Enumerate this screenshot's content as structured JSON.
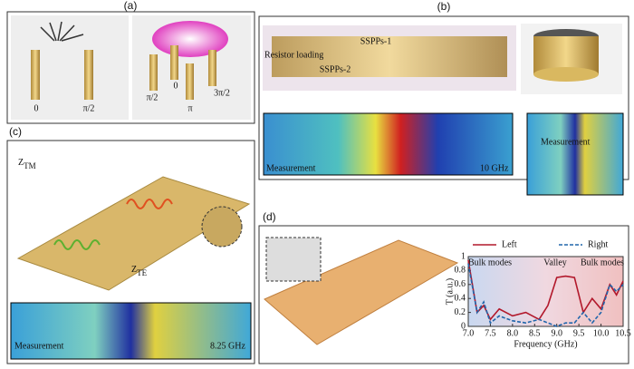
{
  "panel_a": {
    "label": "(a)",
    "phases_left": [
      "0",
      "π/2"
    ],
    "phases_right": [
      "π/2",
      "0",
      "π",
      "3π/2"
    ]
  },
  "panel_b": {
    "label": "(b)",
    "sspp1": "SSPPs-1",
    "resistor": "Resistor loading",
    "sspp2": "SSPPs-2",
    "measurement_left": "Measurement",
    "freq": "10 GHz",
    "measurement_right": "Measurement"
  },
  "panel_c": {
    "label": "(c)",
    "ztm_main": "Z",
    "ztm_sub": "TM",
    "zte_main": "Z",
    "zte_sub": "TE",
    "measurement": "Measurement",
    "freq": "8.25 GHz"
  },
  "panel_d": {
    "label": "(d)",
    "chart": {
      "type": "line",
      "xlabel": "Frequency (GHz)",
      "ylabel": "T (a.u.)",
      "annotations": [
        "Bulk modes",
        "Valley",
        "Bulk modes"
      ],
      "x": [
        7.0,
        7.2,
        7.35,
        7.5,
        7.7,
        8.0,
        8.3,
        8.6,
        8.8,
        9.0,
        9.2,
        9.4,
        9.6,
        9.8,
        10.0,
        10.2,
        10.35,
        10.5
      ],
      "series": [
        {
          "name": "Left",
          "color": "#b2182b",
          "dash": false,
          "values": [
            0.95,
            0.2,
            0.3,
            0.1,
            0.25,
            0.15,
            0.2,
            0.1,
            0.3,
            0.7,
            0.72,
            0.7,
            0.2,
            0.4,
            0.25,
            0.6,
            0.45,
            0.65
          ]
        },
        {
          "name": "Right",
          "color": "#2166ac",
          "dash": true,
          "values": [
            0.9,
            0.2,
            0.35,
            0.05,
            0.15,
            0.08,
            0.05,
            0.1,
            0.05,
            0.0,
            0.05,
            0.05,
            0.2,
            0.05,
            0.2,
            0.6,
            0.5,
            0.6
          ]
        }
      ],
      "xlim": [
        7.0,
        10.5
      ],
      "ylim": [
        0,
        1
      ],
      "xticks": [
        {
          "value": 7.0,
          "label": "7.0"
        },
        {
          "value": 7.5,
          "label": "7.5"
        },
        {
          "value": 8.0,
          "label": "8.0"
        },
        {
          "value": 8.5,
          "label": "8.5"
        },
        {
          "value": 9.0,
          "label": "9.0"
        },
        {
          "value": 9.5,
          "label": "9.5"
        },
        {
          "value": 10.0,
          "label": "10.0"
        },
        {
          "value": 10.5,
          "label": "10.5"
        }
      ],
      "yticks": [
        0,
        0.2,
        0.4,
        0.6,
        0.8,
        1
      ]
    }
  }
}
